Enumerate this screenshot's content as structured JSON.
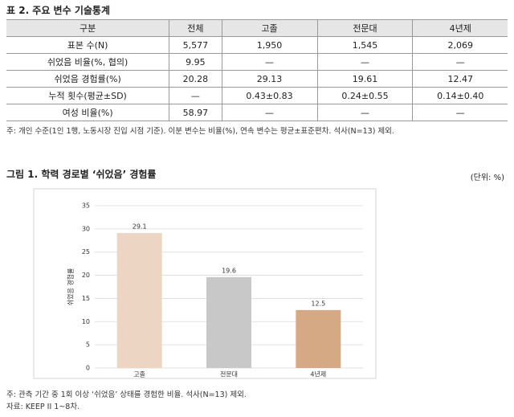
{
  "table": {
    "title": "표 2. 주요 변수 기술통계",
    "header": [
      "구분",
      "전체",
      "고졸",
      "전문대",
      "4년제"
    ],
    "rows": [
      [
        "표본 수(N)",
        "5,577",
        "1,950",
        "1,545",
        "2,069"
      ],
      [
        "쉬었음 비율(%, 협의)",
        "9.95",
        "—",
        "—",
        "—"
      ],
      [
        "쉬었음 경험률(%)",
        "20.28",
        "29.13",
        "19.61",
        "12.47"
      ],
      [
        "누적 횟수(평균±SD)",
        "—",
        "0.43±0.83",
        "0.24±0.55",
        "0.14±0.40"
      ],
      [
        "여성 비율(%)",
        "58.97",
        "—",
        "—",
        "—"
      ]
    ],
    "note": "주: 개인 수준(1인 1행, 노동시장 진입 시점 기준). 이분 변수는 비율(%), 연속 변수는 평균±표준편차. 석사(N=13) 제외."
  },
  "chart_data": {
    "type": "bar",
    "title": "그림 1. 학력 경로별 ‘쉬었음’ 경험률",
    "subtitle": "(단위: %)",
    "y_label": "쉬었음 경험률",
    "categories": [
      "고졸",
      "전문대",
      "4년제"
    ],
    "values": [
      29.1,
      19.6,
      12.5
    ],
    "colors": [
      "#ecd6c3",
      "#c8c8c8",
      "#d6a985"
    ],
    "ylim": [
      0,
      35
    ],
    "yticks": [
      0,
      5,
      10,
      15,
      20,
      25,
      30,
      35
    ],
    "grid": true,
    "notes": [
      "주: 관측 기간 중 1회 이상 ‘쉬었음’ 상태를 경험한 비율. 석사(N=13) 제외.",
      "자료: KEEP II 1~8차."
    ]
  }
}
